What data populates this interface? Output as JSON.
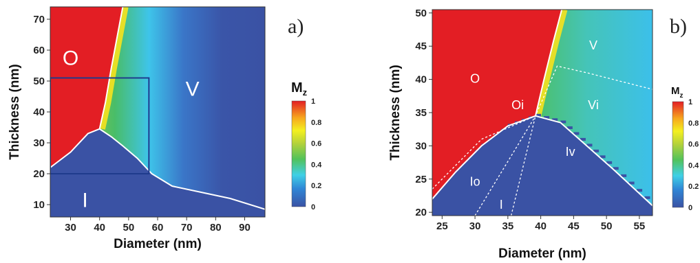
{
  "chart_data": [
    {
      "type": "heatmap",
      "panel": "a)",
      "xlabel": "Diameter (nm)",
      "ylabel": "Thickness (nm)",
      "xlim": [
        23,
        97
      ],
      "ylim": [
        6,
        74
      ],
      "xticks": [
        30,
        40,
        50,
        60,
        70,
        80,
        90
      ],
      "yticks": [
        10,
        20,
        30,
        40,
        50,
        60,
        70
      ],
      "colorbar": {
        "title": "M",
        "subscript": "z",
        "ticks": [
          0,
          0.2,
          0.4,
          0.6,
          0.8,
          1
        ]
      },
      "region_labels": [
        {
          "text": "O",
          "x": 30,
          "y": 57
        },
        {
          "text": "V",
          "x": 72,
          "y": 47
        },
        {
          "text": "I",
          "x": 35,
          "y": 11
        }
      ],
      "boundaries": [
        {
          "name": "vortex-onion",
          "points": [
            [
              40,
              34.5
            ],
            [
              42,
              43
            ],
            [
              44,
              54
            ],
            [
              46,
              64
            ],
            [
              48,
              74
            ]
          ]
        },
        {
          "name": "in-plane-top",
          "points": [
            [
              23,
              22
            ],
            [
              30,
              27
            ],
            [
              36,
              33
            ],
            [
              40,
              34.5
            ],
            [
              44,
              32
            ],
            [
              48,
              29
            ],
            [
              53,
              25
            ],
            [
              58,
              20
            ],
            [
              65,
              16
            ],
            [
              75,
              14
            ],
            [
              85,
              12
            ],
            [
              97,
              8.5
            ]
          ]
        }
      ],
      "inset_box": {
        "x": [
          23,
          57
        ],
        "y": [
          20,
          51
        ]
      }
    },
    {
      "type": "heatmap",
      "panel": "b)",
      "xlabel": "Diameter (nm)",
      "ylabel": "Thickness (nm)",
      "xlim": [
        23.5,
        57
      ],
      "ylim": [
        19.5,
        50.5
      ],
      "xticks": [
        25,
        30,
        35,
        40,
        45,
        50,
        55
      ],
      "yticks": [
        20,
        25,
        30,
        35,
        40,
        45,
        50
      ],
      "colorbar": {
        "title": "M",
        "subscript": "z",
        "ticks": [
          0,
          0.2,
          0.4,
          0.6,
          0.8,
          1
        ]
      },
      "region_labels": [
        {
          "text": "O",
          "x": 30,
          "y": 40
        },
        {
          "text": "V",
          "x": 48,
          "y": 45
        },
        {
          "text": "Oi",
          "x": 36.5,
          "y": 36
        },
        {
          "text": "Vi",
          "x": 48,
          "y": 36
        },
        {
          "text": "Io",
          "x": 30,
          "y": 24.5
        },
        {
          "text": "Iv",
          "x": 44.5,
          "y": 29
        },
        {
          "text": "I",
          "x": 34,
          "y": 21
        }
      ],
      "boundaries": [
        {
          "name": "vortex-onion",
          "points": [
            [
              39.2,
              34.5
            ],
            [
              40.5,
              40
            ],
            [
              42,
              46
            ],
            [
              43.2,
              50.5
            ]
          ]
        },
        {
          "name": "in-plane-top",
          "points": [
            [
              23.5,
              22
            ],
            [
              27,
              26
            ],
            [
              31,
              30
            ],
            [
              35,
              33
            ],
            [
              39.2,
              34.5
            ],
            [
              43,
              33.5
            ],
            [
              47,
              30
            ],
            [
              51,
              26.5
            ],
            [
              57,
              21
            ]
          ]
        },
        {
          "name": "metastable-onion",
          "dashed": true,
          "points": [
            [
              23.5,
              23.5
            ],
            [
              31,
              31
            ],
            [
              39.2,
              34.5
            ],
            [
              42.5,
              42
            ],
            [
              47,
              41
            ],
            [
              53,
              39.5
            ],
            [
              57,
              38.5
            ]
          ]
        },
        {
          "name": "dotted-1",
          "dashed": true,
          "points": [
            [
              30,
              19.5
            ],
            [
              39.2,
              34.5
            ]
          ]
        },
        {
          "name": "dotted-2",
          "dashed": true,
          "points": [
            [
              35.5,
              19.5
            ],
            [
              39.2,
              34.5
            ]
          ]
        }
      ]
    }
  ]
}
